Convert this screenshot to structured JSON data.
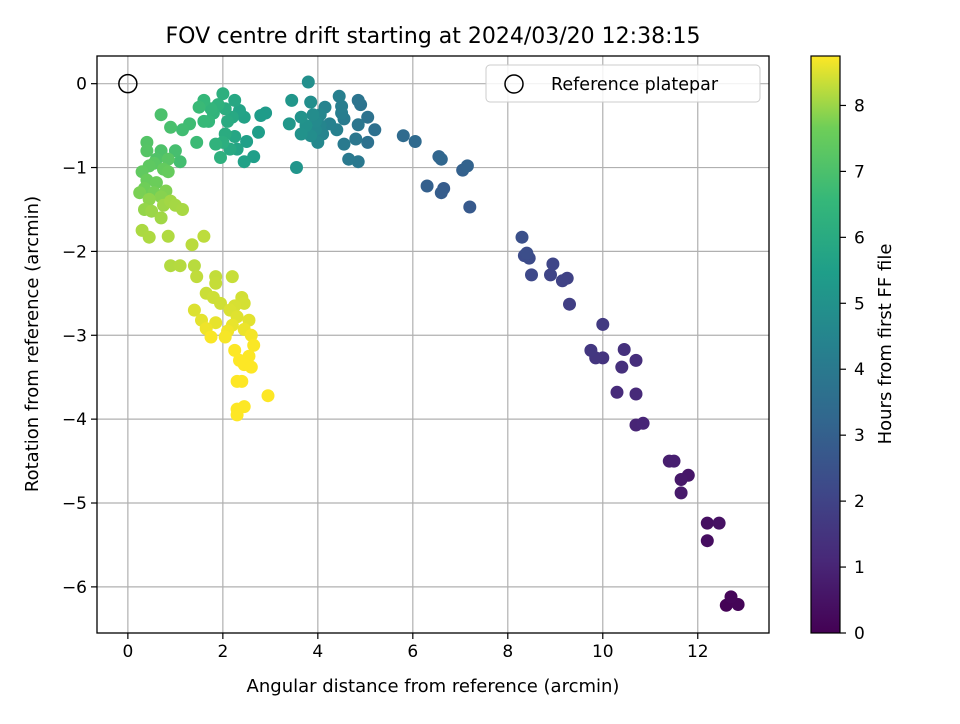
{
  "chart_data": {
    "type": "scatter",
    "title": "FOV centre drift starting at 2024/03/20 12:38:15",
    "xlabel": "Angular distance from reference (arcmin)",
    "ylabel": "Rotation from reference (arcmin)",
    "xlim": [
      -0.65,
      13.5
    ],
    "ylim": [
      -6.55,
      0.33
    ],
    "x_ticks": [
      0,
      2,
      4,
      6,
      8,
      10,
      12
    ],
    "y_ticks": [
      0,
      -1,
      -2,
      -3,
      -4,
      -5,
      -6
    ],
    "x_tick_labels": [
      "0",
      "2",
      "4",
      "6",
      "8",
      "10",
      "12"
    ],
    "y_tick_labels": [
      "0",
      "−1",
      "−2",
      "−3",
      "−4",
      "−5",
      "−6"
    ],
    "grid": true,
    "legend": {
      "placement": "top-right",
      "entries": [
        "Reference platepar"
      ]
    },
    "reference_point": {
      "x": 0,
      "y": 0
    },
    "colorbar": {
      "label": "Hours from first FF file",
      "colormap": "viridis",
      "range": [
        0,
        8.75
      ],
      "ticks": [
        0,
        1,
        2,
        3,
        4,
        5,
        6,
        7,
        8
      ],
      "tick_labels": [
        "0",
        "1",
        "2",
        "3",
        "4",
        "5",
        "6",
        "7",
        "8"
      ]
    },
    "points": [
      {
        "x": 12.6,
        "y": -6.22,
        "h": 0.05
      },
      {
        "x": 12.85,
        "y": -6.21,
        "h": 0.1
      },
      {
        "x": 12.7,
        "y": -6.12,
        "h": 0.15
      },
      {
        "x": 12.2,
        "y": -5.45,
        "h": 0.35
      },
      {
        "x": 12.2,
        "y": -5.24,
        "h": 0.4
      },
      {
        "x": 12.45,
        "y": -5.24,
        "h": 0.45
      },
      {
        "x": 11.8,
        "y": -4.67,
        "h": 0.6
      },
      {
        "x": 11.65,
        "y": -4.72,
        "h": 0.65
      },
      {
        "x": 11.65,
        "y": -4.88,
        "h": 0.7
      },
      {
        "x": 11.4,
        "y": -4.5,
        "h": 0.8
      },
      {
        "x": 11.5,
        "y": -4.5,
        "h": 0.85
      },
      {
        "x": 10.7,
        "y": -4.07,
        "h": 1.0
      },
      {
        "x": 10.85,
        "y": -4.05,
        "h": 1.05
      },
      {
        "x": 10.7,
        "y": -3.7,
        "h": 1.15
      },
      {
        "x": 10.3,
        "y": -3.68,
        "h": 1.2
      },
      {
        "x": 10.7,
        "y": -3.3,
        "h": 1.3
      },
      {
        "x": 10.4,
        "y": -3.38,
        "h": 1.35
      },
      {
        "x": 10.45,
        "y": -3.17,
        "h": 1.4
      },
      {
        "x": 10.0,
        "y": -3.27,
        "h": 1.5
      },
      {
        "x": 9.85,
        "y": -3.27,
        "h": 1.55
      },
      {
        "x": 9.75,
        "y": -3.18,
        "h": 1.6
      },
      {
        "x": 10.0,
        "y": -2.87,
        "h": 1.7
      },
      {
        "x": 9.3,
        "y": -2.63,
        "h": 1.85
      },
      {
        "x": 9.25,
        "y": -2.32,
        "h": 1.95
      },
      {
        "x": 9.15,
        "y": -2.35,
        "h": 2.0
      },
      {
        "x": 8.9,
        "y": -2.28,
        "h": 2.05
      },
      {
        "x": 8.95,
        "y": -2.15,
        "h": 2.1
      },
      {
        "x": 8.5,
        "y": -2.28,
        "h": 2.2
      },
      {
        "x": 8.45,
        "y": -2.08,
        "h": 2.25
      },
      {
        "x": 8.35,
        "y": -2.05,
        "h": 2.3
      },
      {
        "x": 8.4,
        "y": -2.02,
        "h": 2.35
      },
      {
        "x": 8.3,
        "y": -1.83,
        "h": 2.45
      },
      {
        "x": 7.2,
        "y": -1.47,
        "h": 2.75
      },
      {
        "x": 6.65,
        "y": -1.25,
        "h": 2.85
      },
      {
        "x": 6.6,
        "y": -1.3,
        "h": 2.9
      },
      {
        "x": 6.3,
        "y": -1.22,
        "h": 3.0
      },
      {
        "x": 7.05,
        "y": -1.03,
        "h": 3.05
      },
      {
        "x": 7.15,
        "y": -0.98,
        "h": 3.1
      },
      {
        "x": 6.55,
        "y": -0.87,
        "h": 3.2
      },
      {
        "x": 6.6,
        "y": -0.9,
        "h": 3.25
      },
      {
        "x": 6.05,
        "y": -0.69,
        "h": 3.35
      },
      {
        "x": 5.8,
        "y": -0.62,
        "h": 3.4
      },
      {
        "x": 5.2,
        "y": -0.55,
        "h": 3.6
      },
      {
        "x": 5.05,
        "y": -0.7,
        "h": 3.65
      },
      {
        "x": 5.05,
        "y": -0.4,
        "h": 3.7
      },
      {
        "x": 4.9,
        "y": -0.25,
        "h": 3.75
      },
      {
        "x": 4.85,
        "y": -0.2,
        "h": 3.8
      },
      {
        "x": 4.85,
        "y": -0.49,
        "h": 3.85
      },
      {
        "x": 4.8,
        "y": -0.66,
        "h": 3.9
      },
      {
        "x": 4.85,
        "y": -0.93,
        "h": 3.95
      },
      {
        "x": 4.65,
        "y": -0.9,
        "h": 4.0
      },
      {
        "x": 4.55,
        "y": -0.72,
        "h": 4.05
      },
      {
        "x": 4.55,
        "y": -0.42,
        "h": 4.1
      },
      {
        "x": 4.5,
        "y": -0.35,
        "h": 4.15
      },
      {
        "x": 4.5,
        "y": -0.27,
        "h": 4.2
      },
      {
        "x": 4.45,
        "y": -0.15,
        "h": 4.25
      },
      {
        "x": 4.4,
        "y": -0.55,
        "h": 4.3
      },
      {
        "x": 4.25,
        "y": -0.48,
        "h": 4.35
      },
      {
        "x": 4.15,
        "y": -0.28,
        "h": 4.4
      },
      {
        "x": 4.1,
        "y": -0.6,
        "h": 4.45
      },
      {
        "x": 4.05,
        "y": -0.5,
        "h": 4.5
      },
      {
        "x": 4.05,
        "y": -0.37,
        "h": 4.55
      },
      {
        "x": 4.0,
        "y": -0.7,
        "h": 4.6
      },
      {
        "x": 3.95,
        "y": -0.55,
        "h": 4.65
      },
      {
        "x": 3.95,
        "y": -0.45,
        "h": 4.7
      },
      {
        "x": 3.9,
        "y": -0.37,
        "h": 4.75
      },
      {
        "x": 3.85,
        "y": -0.62,
        "h": 4.8
      },
      {
        "x": 3.85,
        "y": -0.22,
        "h": 4.85
      },
      {
        "x": 3.8,
        "y": 0.02,
        "h": 4.9
      },
      {
        "x": 3.75,
        "y": -0.5,
        "h": 4.95
      },
      {
        "x": 3.65,
        "y": -0.6,
        "h": 5.0
      },
      {
        "x": 3.65,
        "y": -0.4,
        "h": 5.05
      },
      {
        "x": 3.55,
        "y": -1.0,
        "h": 5.1
      },
      {
        "x": 3.45,
        "y": -0.2,
        "h": 5.15
      },
      {
        "x": 3.4,
        "y": -0.48,
        "h": 5.2
      },
      {
        "x": 2.9,
        "y": -0.35,
        "h": 5.35
      },
      {
        "x": 2.8,
        "y": -0.38,
        "h": 5.4
      },
      {
        "x": 2.75,
        "y": -0.58,
        "h": 5.45
      },
      {
        "x": 2.65,
        "y": -0.87,
        "h": 5.5
      },
      {
        "x": 2.5,
        "y": -0.69,
        "h": 5.55
      },
      {
        "x": 2.45,
        "y": -0.93,
        "h": 5.6
      },
      {
        "x": 2.45,
        "y": -0.4,
        "h": 5.65
      },
      {
        "x": 2.35,
        "y": -0.32,
        "h": 5.7
      },
      {
        "x": 2.3,
        "y": -0.78,
        "h": 5.75
      },
      {
        "x": 2.25,
        "y": -0.63,
        "h": 5.8
      },
      {
        "x": 2.25,
        "y": -0.2,
        "h": 5.85
      },
      {
        "x": 2.2,
        "y": -0.4,
        "h": 5.9
      },
      {
        "x": 2.15,
        "y": -0.78,
        "h": 5.95
      },
      {
        "x": 2.1,
        "y": -0.45,
        "h": 6.0
      },
      {
        "x": 2.05,
        "y": -0.6,
        "h": 6.05
      },
      {
        "x": 2.05,
        "y": -0.3,
        "h": 6.1
      },
      {
        "x": 2.0,
        "y": -0.7,
        "h": 6.15
      },
      {
        "x": 2.0,
        "y": -0.12,
        "h": 6.2
      },
      {
        "x": 1.95,
        "y": -0.88,
        "h": 6.25
      },
      {
        "x": 1.9,
        "y": -0.25,
        "h": 6.3
      },
      {
        "x": 1.85,
        "y": -0.72,
        "h": 6.35
      },
      {
        "x": 1.8,
        "y": -0.35,
        "h": 6.4
      },
      {
        "x": 1.75,
        "y": -0.3,
        "h": 6.45
      },
      {
        "x": 1.7,
        "y": -0.45,
        "h": 6.5
      },
      {
        "x": 1.6,
        "y": -0.2,
        "h": 6.55
      },
      {
        "x": 1.6,
        "y": -0.45,
        "h": 6.6
      },
      {
        "x": 1.5,
        "y": -0.28,
        "h": 6.65
      },
      {
        "x": 1.45,
        "y": -0.7,
        "h": 6.7
      },
      {
        "x": 1.3,
        "y": -0.48,
        "h": 6.75
      },
      {
        "x": 1.15,
        "y": -0.55,
        "h": 6.8
      },
      {
        "x": 1.1,
        "y": -0.93,
        "h": 6.85
      },
      {
        "x": 1.0,
        "y": -0.8,
        "h": 6.9
      },
      {
        "x": 0.9,
        "y": -0.52,
        "h": 6.95
      },
      {
        "x": 0.7,
        "y": -0.37,
        "h": 7.0
      },
      {
        "x": 0.7,
        "y": -0.8,
        "h": 7.05
      },
      {
        "x": 0.6,
        "y": -0.9,
        "h": 7.1
      },
      {
        "x": 0.4,
        "y": -0.7,
        "h": 7.15
      },
      {
        "x": 0.4,
        "y": -0.8,
        "h": 7.2
      },
      {
        "x": 0.85,
        "y": -0.9,
        "h": 7.25
      },
      {
        "x": 0.55,
        "y": -0.95,
        "h": 7.3
      },
      {
        "x": 0.45,
        "y": -0.98,
        "h": 7.35
      },
      {
        "x": 0.3,
        "y": -1.05,
        "h": 7.4
      },
      {
        "x": 0.75,
        "y": -1.02,
        "h": 7.45
      },
      {
        "x": 0.85,
        "y": -1.05,
        "h": 7.5
      },
      {
        "x": 0.4,
        "y": -1.15,
        "h": 7.55
      },
      {
        "x": 0.6,
        "y": -1.18,
        "h": 7.6
      },
      {
        "x": 0.35,
        "y": -1.25,
        "h": 7.65
      },
      {
        "x": 0.55,
        "y": -1.3,
        "h": 7.7
      },
      {
        "x": 0.25,
        "y": -1.3,
        "h": 7.75
      },
      {
        "x": 0.8,
        "y": -1.28,
        "h": 7.8
      },
      {
        "x": 0.7,
        "y": -1.35,
        "h": 7.85
      },
      {
        "x": 0.45,
        "y": -1.38,
        "h": 7.9
      },
      {
        "x": 0.35,
        "y": -1.5,
        "h": 7.95
      },
      {
        "x": 0.5,
        "y": -1.52,
        "h": 8.0
      },
      {
        "x": 0.75,
        "y": -1.45,
        "h": 8.02
      },
      {
        "x": 0.7,
        "y": -1.6,
        "h": 8.04
      },
      {
        "x": 0.9,
        "y": -1.4,
        "h": 8.06
      },
      {
        "x": 1.0,
        "y": -1.45,
        "h": 8.08
      },
      {
        "x": 1.15,
        "y": -1.5,
        "h": 8.1
      },
      {
        "x": 0.3,
        "y": -1.75,
        "h": 8.12
      },
      {
        "x": 0.45,
        "y": -1.83,
        "h": 8.14
      },
      {
        "x": 0.85,
        "y": -1.82,
        "h": 8.16
      },
      {
        "x": 0.9,
        "y": -2.17,
        "h": 8.18
      },
      {
        "x": 1.1,
        "y": -2.17,
        "h": 8.2
      },
      {
        "x": 1.4,
        "y": -2.17,
        "h": 8.22
      },
      {
        "x": 1.35,
        "y": -1.92,
        "h": 8.24
      },
      {
        "x": 1.6,
        "y": -1.82,
        "h": 8.26
      },
      {
        "x": 1.45,
        "y": -2.3,
        "h": 8.28
      },
      {
        "x": 1.85,
        "y": -2.3,
        "h": 8.3
      },
      {
        "x": 1.85,
        "y": -2.38,
        "h": 8.32
      },
      {
        "x": 2.2,
        "y": -2.3,
        "h": 8.34
      },
      {
        "x": 1.65,
        "y": -2.5,
        "h": 8.36
      },
      {
        "x": 1.8,
        "y": -2.55,
        "h": 8.38
      },
      {
        "x": 1.95,
        "y": -2.62,
        "h": 8.4
      },
      {
        "x": 2.4,
        "y": -2.55,
        "h": 8.42
      },
      {
        "x": 2.45,
        "y": -2.62,
        "h": 8.44
      },
      {
        "x": 2.25,
        "y": -2.65,
        "h": 8.46
      },
      {
        "x": 2.15,
        "y": -2.7,
        "h": 8.48
      },
      {
        "x": 1.4,
        "y": -2.7,
        "h": 8.5
      },
      {
        "x": 2.3,
        "y": -2.78,
        "h": 8.52
      },
      {
        "x": 2.55,
        "y": -2.82,
        "h": 8.54
      },
      {
        "x": 1.55,
        "y": -2.82,
        "h": 8.56
      },
      {
        "x": 1.85,
        "y": -2.85,
        "h": 8.58
      },
      {
        "x": 2.2,
        "y": -2.88,
        "h": 8.6
      },
      {
        "x": 2.45,
        "y": -2.93,
        "h": 8.62
      },
      {
        "x": 1.65,
        "y": -2.92,
        "h": 8.64
      },
      {
        "x": 2.1,
        "y": -2.95,
        "h": 8.66
      },
      {
        "x": 2.6,
        "y": -3.0,
        "h": 8.68
      },
      {
        "x": 2.05,
        "y": -3.02,
        "h": 8.7
      },
      {
        "x": 1.75,
        "y": -3.02,
        "h": 8.72
      },
      {
        "x": 2.65,
        "y": -3.12,
        "h": 8.73
      },
      {
        "x": 2.25,
        "y": -3.18,
        "h": 8.74
      },
      {
        "x": 2.55,
        "y": -3.25,
        "h": 8.74
      },
      {
        "x": 2.35,
        "y": -3.3,
        "h": 8.75
      },
      {
        "x": 2.45,
        "y": -3.35,
        "h": 8.75
      },
      {
        "x": 2.6,
        "y": -3.38,
        "h": 8.75
      },
      {
        "x": 2.3,
        "y": -3.55,
        "h": 8.75
      },
      {
        "x": 2.4,
        "y": -3.55,
        "h": 8.75
      },
      {
        "x": 2.95,
        "y": -3.72,
        "h": 8.75
      },
      {
        "x": 2.45,
        "y": -3.85,
        "h": 8.75
      },
      {
        "x": 2.3,
        "y": -3.88,
        "h": 8.75
      },
      {
        "x": 2.3,
        "y": -3.95,
        "h": 8.75
      }
    ]
  }
}
